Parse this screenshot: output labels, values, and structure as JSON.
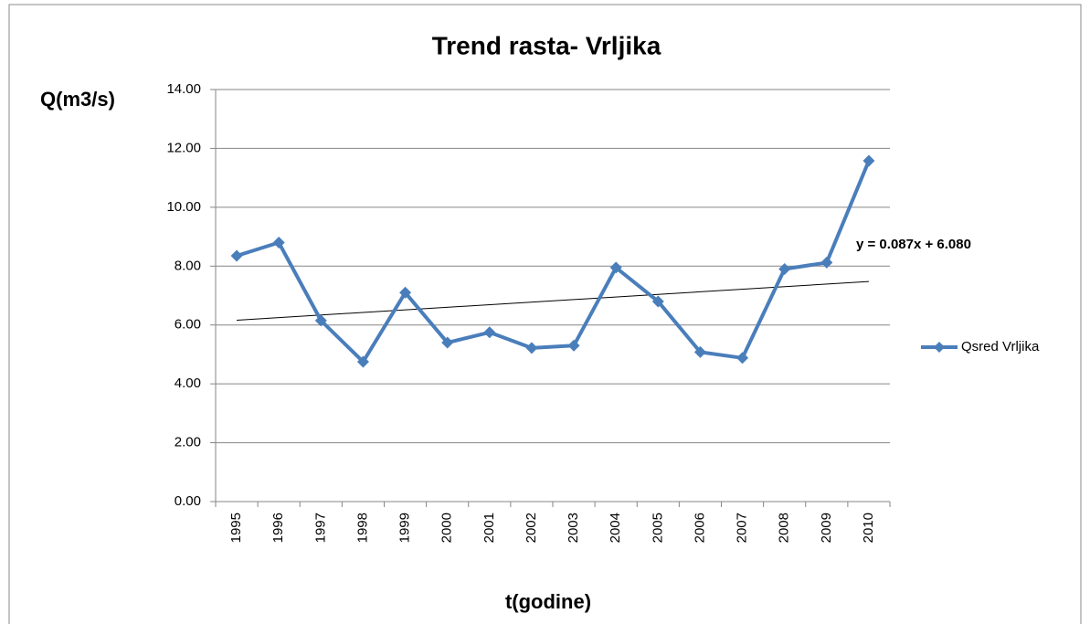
{
  "chart_data": {
    "type": "line",
    "title": "Trend rasta- Vrljika",
    "y_label": "Q(m3/s)",
    "x_label": "t(godine)",
    "annotation": "y = 0.087x + 6.080",
    "categories": [
      "1995",
      "1996",
      "1997",
      "1998",
      "1999",
      "2000",
      "2001",
      "2002",
      "2003",
      "2004",
      "2005",
      "2006",
      "2007",
      "2008",
      "2009",
      "2010"
    ],
    "series": [
      {
        "name": "Qsred Vrljika",
        "color": "#4a7ebb",
        "values": [
          8.35,
          8.8,
          6.15,
          4.75,
          7.1,
          5.4,
          5.75,
          5.22,
          5.3,
          7.95,
          6.8,
          5.08,
          4.88,
          7.9,
          8.12,
          11.58
        ]
      }
    ],
    "trendline": true,
    "ylim": [
      0,
      14
    ],
    "yticks": [
      {
        "value": 0,
        "label": "0.00"
      },
      {
        "value": 2,
        "label": "2.00"
      },
      {
        "value": 4,
        "label": "4.00"
      },
      {
        "value": 6,
        "label": "6.00"
      },
      {
        "value": 8,
        "label": "8.00"
      },
      {
        "value": 10,
        "label": "10.00"
      },
      {
        "value": 12,
        "label": "12.00"
      },
      {
        "value": 14,
        "label": "14.00"
      }
    ],
    "grid": true,
    "legend": "right"
  }
}
